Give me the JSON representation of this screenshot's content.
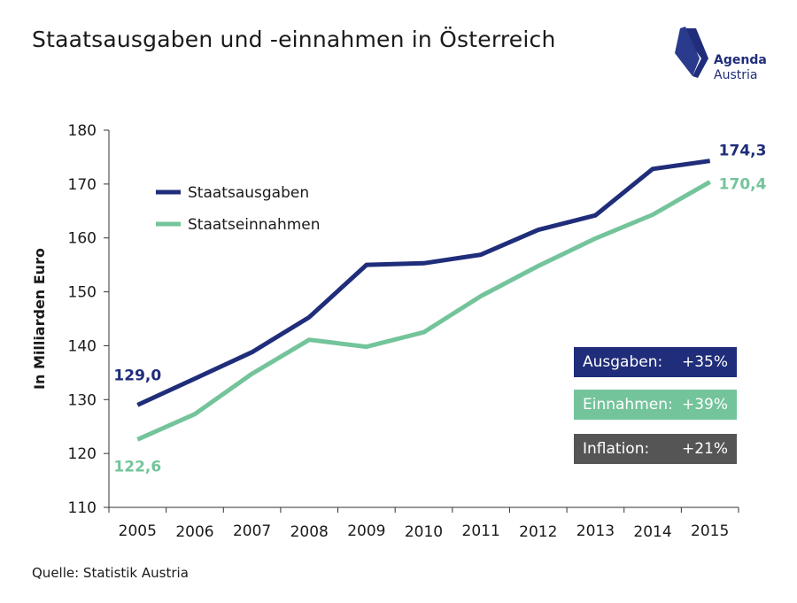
{
  "title": "Staatsausgaben und -einnahmen in Österreich",
  "source": "Quelle: Statistik Austria",
  "logo": {
    "name": "Agenda",
    "sub": "Austria",
    "color": "#1f2d7a"
  },
  "boxes": [
    {
      "label": "Ausgaben:",
      "value": "+35%",
      "color": "#1f2d7a"
    },
    {
      "label": "Einnahmen:",
      "value": "+39%",
      "color": "#74c49b"
    },
    {
      "label": "Inflation:",
      "value": "+21%",
      "color": "#555555"
    }
  ],
  "chart_data": {
    "type": "line",
    "title": "Staatsausgaben und -einnahmen in Österreich",
    "xlabel": "",
    "ylabel": "In Milliarden Euro",
    "ylim": [
      110,
      180
    ],
    "yticks": [
      110,
      120,
      130,
      140,
      150,
      160,
      170,
      180
    ],
    "grid": false,
    "legend_position": "top-left",
    "x": [
      "2005",
      "2006",
      "2007",
      "2008",
      "2009",
      "2010",
      "2011",
      "2012",
      "2013",
      "2014",
      "2015"
    ],
    "series": [
      {
        "name": "Staatsausgaben",
        "color": "#1f2d7a",
        "values": [
          129.0,
          133.9,
          138.8,
          145.3,
          155.0,
          155.3,
          156.9,
          161.5,
          164.2,
          172.8,
          174.3
        ],
        "labels": {
          "first": "129,0",
          "last": "174,3"
        }
      },
      {
        "name": "Staatseinnahmen",
        "color": "#74c49b",
        "values": [
          122.6,
          127.3,
          134.8,
          141.1,
          139.8,
          142.5,
          149.2,
          154.8,
          159.9,
          164.3,
          170.4
        ],
        "labels": {
          "first": "122,6",
          "last": "170,4"
        }
      }
    ]
  }
}
